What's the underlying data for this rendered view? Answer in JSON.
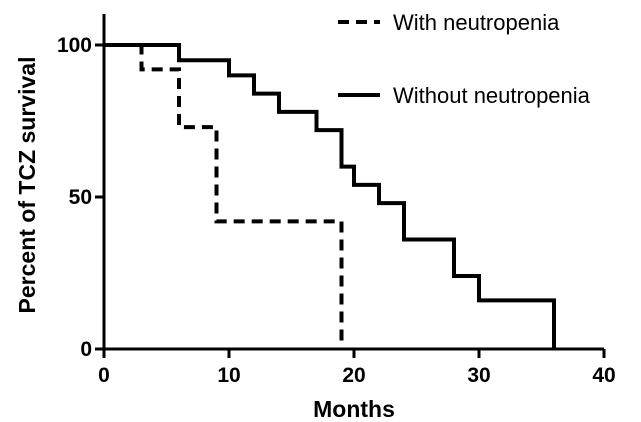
{
  "chart_data": {
    "type": "line",
    "subtype": "step",
    "xlabel": "Months",
    "ylabel": "Percent of TCZ survival",
    "xlim": [
      0,
      40
    ],
    "ylim": [
      0,
      100
    ],
    "xticks": [
      0,
      10,
      20,
      30,
      40
    ],
    "yticks": [
      0,
      50,
      100
    ],
    "legend_position": "top-right",
    "grid": false,
    "series": [
      {
        "name": "With neutropenia",
        "style": "dashed",
        "color": "#000000",
        "x": [
          0,
          3,
          6,
          9,
          19,
          19
        ],
        "y": [
          100,
          92,
          73,
          42,
          42,
          0
        ]
      },
      {
        "name": "Without neutropenia",
        "style": "solid",
        "color": "#000000",
        "x": [
          0,
          6,
          10,
          12,
          14,
          17,
          19,
          20,
          22,
          24,
          28,
          30,
          36,
          36
        ],
        "y": [
          100,
          95,
          90,
          84,
          78,
          72,
          60,
          54,
          48,
          36,
          24,
          16,
          8,
          0
        ]
      }
    ]
  }
}
